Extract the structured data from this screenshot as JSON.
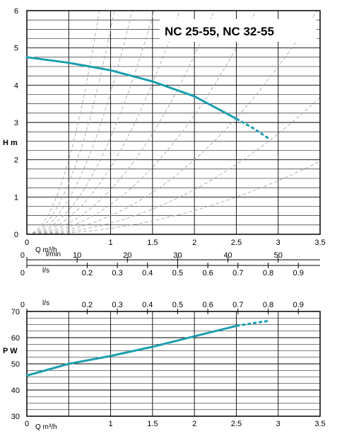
{
  "chart_data": [
    {
      "type": "line",
      "title": "NC 25-55,  NC 32-55",
      "ylabel": "H m",
      "xlabel": "Q  m³/h",
      "xlim": [
        0,
        3.5
      ],
      "ylim": [
        0,
        6
      ],
      "grid": true,
      "x_ticks": [
        {
          "v": 0,
          "label": "0"
        },
        {
          "v": 1,
          "label": "1"
        },
        {
          "v": 1.5,
          "label": "1.5"
        },
        {
          "v": 2,
          "label": "2"
        },
        {
          "v": 2.5,
          "label": "2.5"
        },
        {
          "v": 3,
          "label": "3"
        },
        {
          "v": 3.5,
          "label": "3.5"
        }
      ],
      "y_ticks": [
        {
          "v": 0,
          "label": "0"
        },
        {
          "v": 1,
          "label": "1"
        },
        {
          "v": 2,
          "label": "2"
        },
        {
          "v": 3,
          "label": "3"
        },
        {
          "v": 4,
          "label": "4"
        },
        {
          "v": 5,
          "label": "5"
        },
        {
          "v": 6,
          "label": "6"
        }
      ],
      "lmin_axis": {
        "unit": "l/min",
        "ticks": [
          {
            "v": 0,
            "label": "0"
          },
          {
            "v": 10,
            "label": "10"
          },
          {
            "v": 20,
            "label": "20"
          },
          {
            "v": 30,
            "label": "30"
          },
          {
            "v": 40,
            "label": "40"
          },
          {
            "v": 50,
            "label": "50"
          }
        ]
      },
      "ls_axis": {
        "unit": "l/s",
        "ticks": [
          {
            "v": 0,
            "label": "0"
          },
          {
            "v": 0.2,
            "label": "0.2"
          },
          {
            "v": 0.3,
            "label": "0.3"
          },
          {
            "v": 0.4,
            "label": "0.4"
          },
          {
            "v": 0.5,
            "label": "0.5"
          },
          {
            "v": 0.6,
            "label": "0.6"
          },
          {
            "v": 0.7,
            "label": "0.7"
          },
          {
            "v": 0.8,
            "label": "0.8"
          },
          {
            "v": 0.9,
            "label": "0.9"
          }
        ]
      },
      "series": [
        {
          "color": "#1a9fb0",
          "solid": {
            "x": [
              0,
              0.5,
              1.0,
              1.5,
              2.0,
              2.5
            ],
            "y": [
              4.75,
              4.6,
              4.4,
              4.1,
              3.7,
              3.1
            ]
          },
          "dashed": {
            "x": [
              2.5,
              2.7,
              2.9
            ],
            "y": [
              3.1,
              2.85,
              2.55
            ]
          }
        }
      ],
      "system_curve_coefficients": [
        0.16,
        0.3,
        0.5,
        0.8,
        1.2,
        1.8,
        2.6,
        3.8,
        5.5,
        8.0
      ],
      "system_curve_color": "#aaaaaa"
    },
    {
      "type": "line",
      "ylabel": "P W",
      "xlabel": "Q  m³/h",
      "xlim": [
        0,
        3.5
      ],
      "ylim": [
        30,
        70
      ],
      "grid": true,
      "x_ticks": [
        {
          "v": 0,
          "label": "0"
        },
        {
          "v": 1,
          "label": "1"
        },
        {
          "v": 1.5,
          "label": "1.5"
        },
        {
          "v": 2,
          "label": "2"
        },
        {
          "v": 2.5,
          "label": "2.5"
        },
        {
          "v": 3,
          "label": "3"
        },
        {
          "v": 3.5,
          "label": "3.5"
        }
      ],
      "y_ticks": [
        {
          "v": 30,
          "label": "30"
        },
        {
          "v": 40,
          "label": "40"
        },
        {
          "v": 50,
          "label": "50"
        },
        {
          "v": 60,
          "label": "60"
        },
        {
          "v": 70,
          "label": "70"
        }
      ],
      "ls_axis": {
        "unit": "l/s",
        "ticks": [
          {
            "v": 0,
            "label": "0"
          },
          {
            "v": 0.2,
            "label": "0.2"
          },
          {
            "v": 0.3,
            "label": "0.3"
          },
          {
            "v": 0.4,
            "label": "0.4"
          },
          {
            "v": 0.5,
            "label": "0.5"
          },
          {
            "v": 0.6,
            "label": "0.6"
          },
          {
            "v": 0.7,
            "label": "0.7"
          },
          {
            "v": 0.8,
            "label": "0.8"
          },
          {
            "v": 0.9,
            "label": "0.9"
          }
        ]
      },
      "series": [
        {
          "color": "#1a9fb0",
          "solid": {
            "x": [
              0,
              0.5,
              1.0,
              1.5,
              2.0,
              2.5
            ],
            "y": [
              45.5,
              50,
              53,
              56.5,
              60.5,
              64.5
            ]
          },
          "dashed": {
            "x": [
              2.5,
              2.7,
              2.9
            ],
            "y": [
              64.5,
              65.5,
              66.5
            ]
          }
        }
      ]
    }
  ]
}
